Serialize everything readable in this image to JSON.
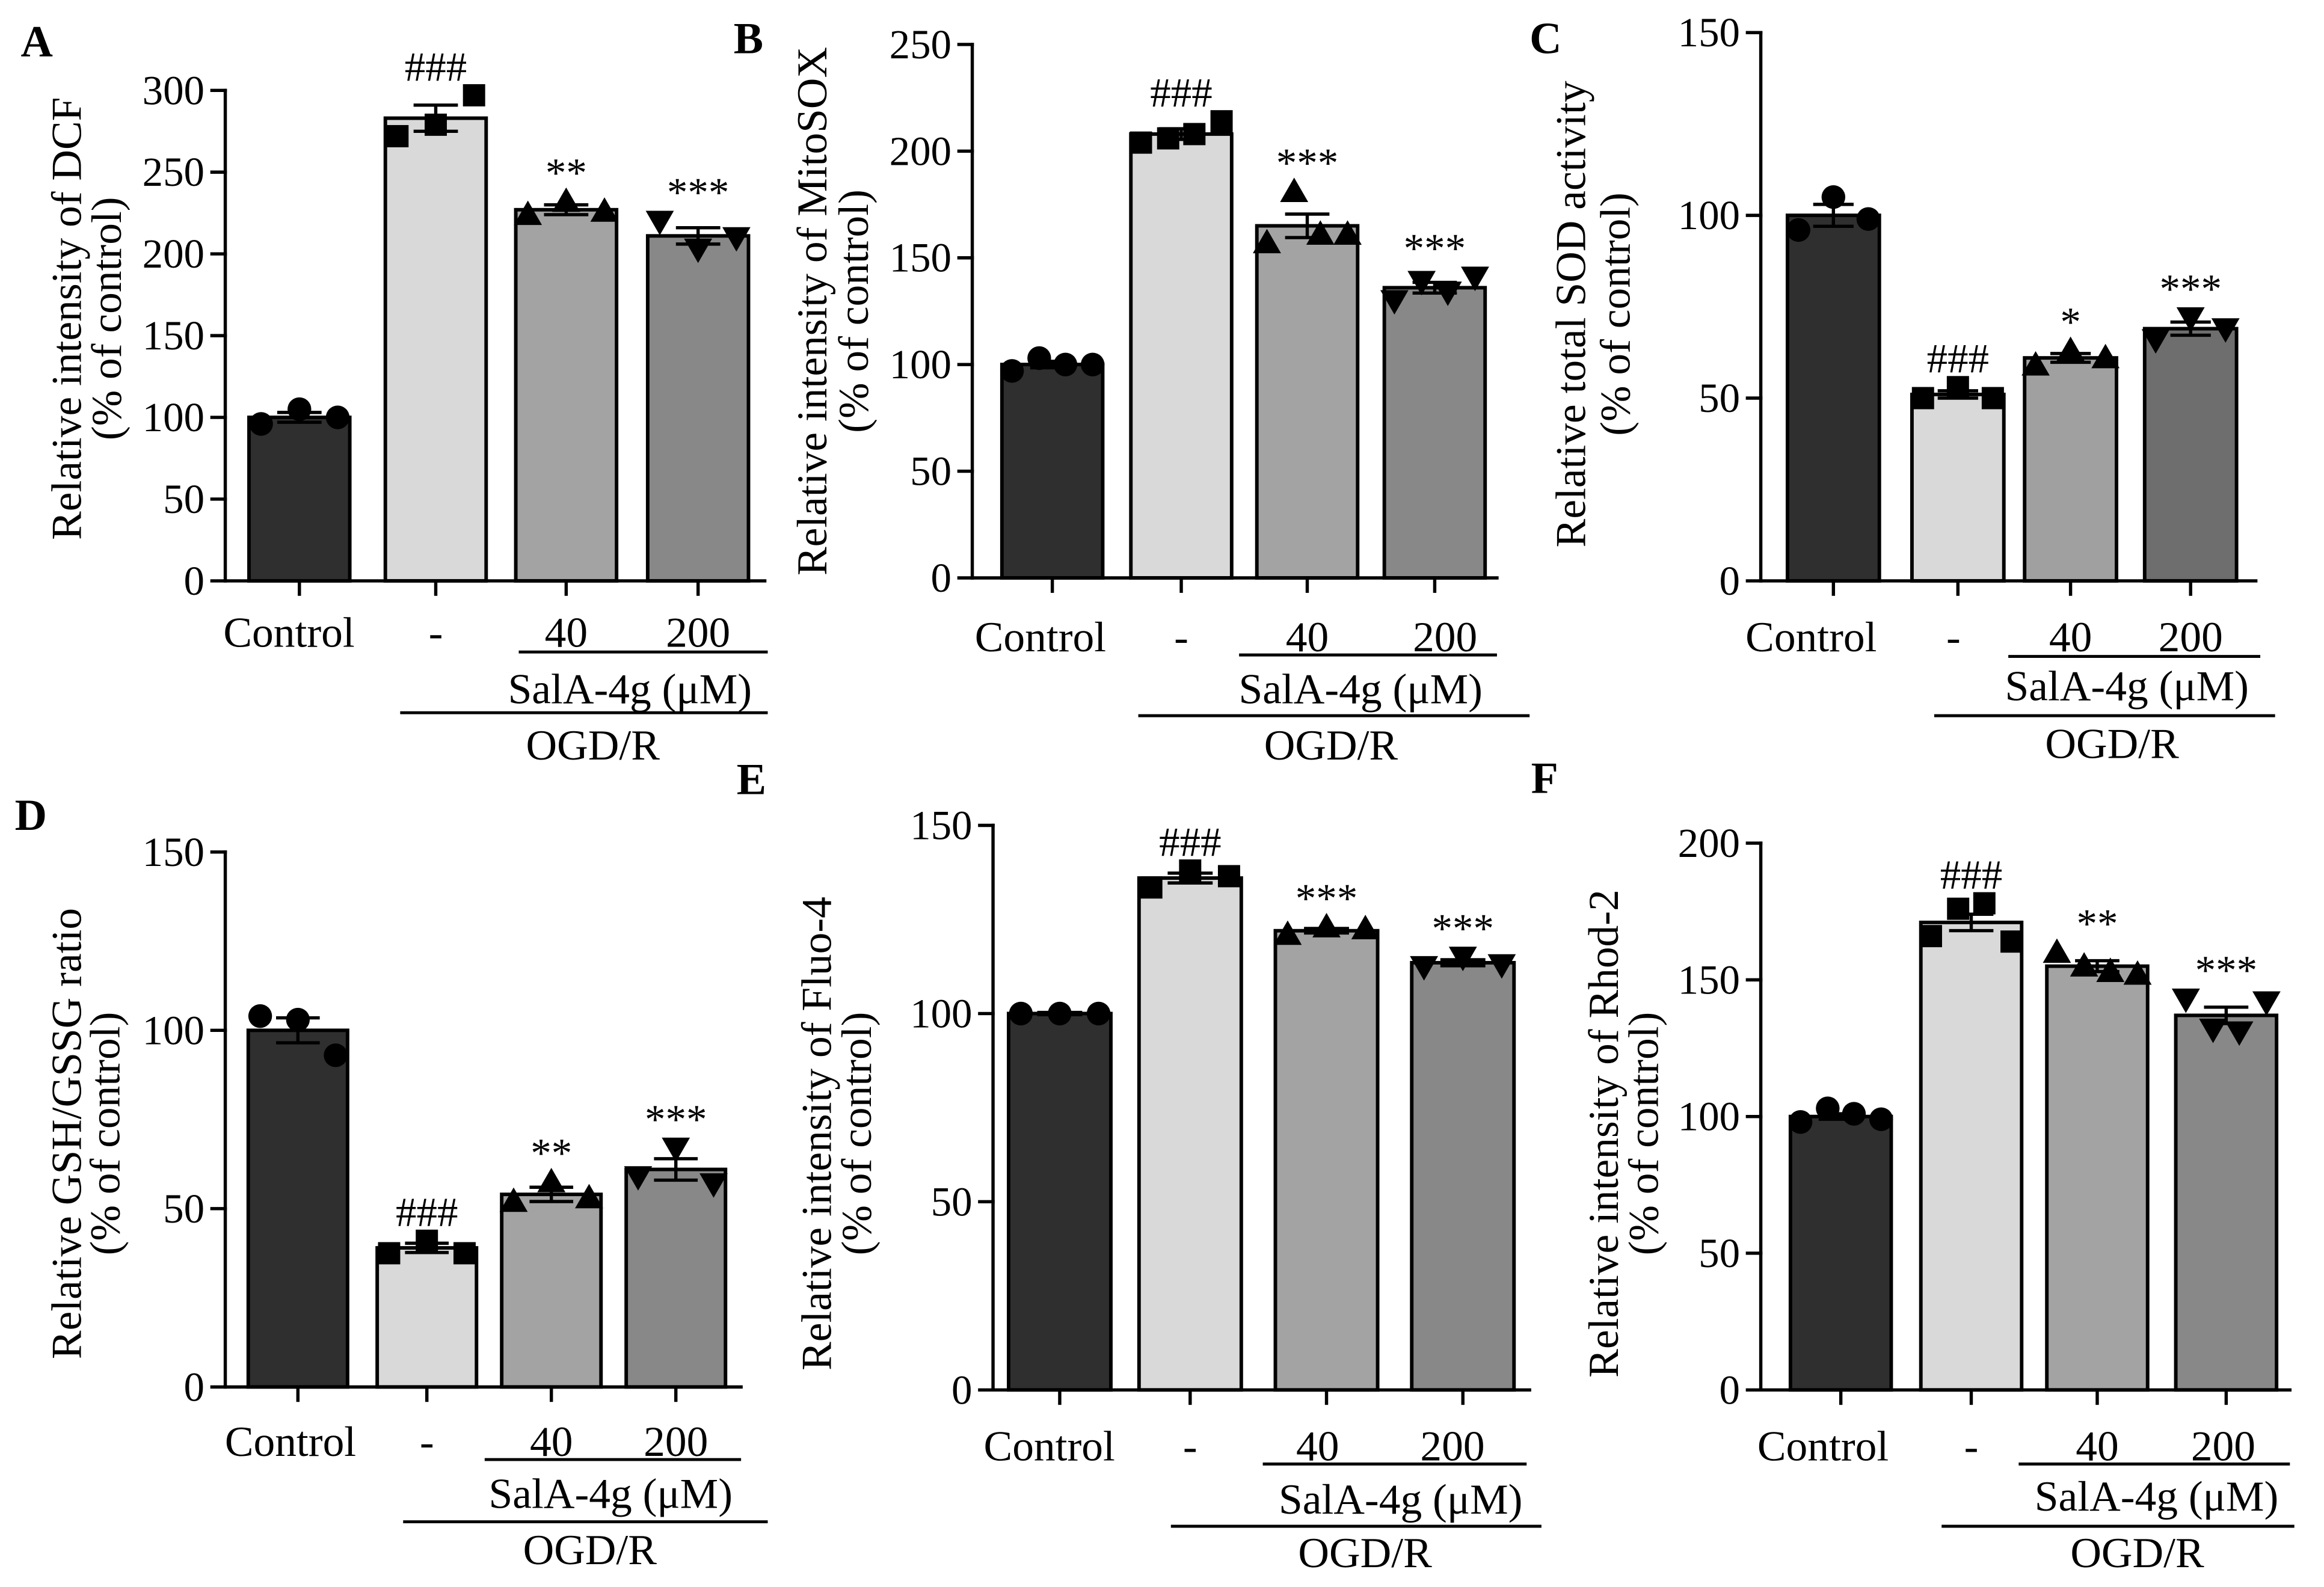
{
  "chart_data": [
    {
      "panel": "A",
      "type": "bar",
      "categories": [
        "Control",
        "-",
        "40",
        "200"
      ],
      "group_labels": [
        "SalA-4g (μM)",
        "OGD/R"
      ],
      "ylabel": [
        "Relative intensity of DCF",
        "(% of control)"
      ],
      "ylim": [
        0,
        300
      ],
      "yticks": [
        0,
        50,
        100,
        150,
        200,
        250,
        300
      ],
      "values": [
        100,
        283,
        227,
        211
      ],
      "errors": [
        3,
        8,
        3,
        5
      ],
      "points": [
        [
          96,
          105,
          100
        ],
        [
          272,
          279,
          297
        ],
        [
          224,
          232,
          226
        ],
        [
          220,
          203,
          210
        ]
      ],
      "markers": [
        "circle",
        "square",
        "triangle-up",
        "triangle-down"
      ],
      "significance": [
        null,
        "###",
        "**",
        "***"
      ],
      "bar_colors": [
        "#2f2f2f",
        "#d9d9d9",
        "#a3a3a3",
        "#888888"
      ]
    },
    {
      "panel": "B",
      "type": "bar",
      "categories": [
        "Control",
        "-",
        "40",
        "200"
      ],
      "group_labels": [
        "SalA-4g (μM)",
        "OGD/R"
      ],
      "ylabel": [
        "Relative intensity of MitoSOX",
        "(% of control)"
      ],
      "ylim": [
        0,
        250
      ],
      "yticks": [
        0,
        50,
        100,
        150,
        200,
        250
      ],
      "values": [
        100,
        208,
        165,
        136
      ],
      "errors": [
        1.5,
        2.5,
        5.5,
        2.5
      ],
      "points": [
        [
          97,
          103,
          100,
          100
        ],
        [
          204,
          206,
          208,
          214
        ],
        [
          157,
          181,
          161,
          161
        ],
        [
          130,
          139,
          134,
          141
        ]
      ],
      "markers": [
        "circle",
        "square",
        "triangle-up",
        "triangle-down"
      ],
      "significance": [
        null,
        "###",
        "***",
        "***"
      ],
      "bar_colors": [
        "#2f2f2f",
        "#d9d9d9",
        "#a3a3a3",
        "#888888"
      ]
    },
    {
      "panel": "C",
      "type": "bar",
      "categories": [
        "Control",
        "-",
        "40",
        "200"
      ],
      "group_labels": [
        "SalA-4g (μM)",
        "OGD/R"
      ],
      "ylabel": [
        "Relative total SOD activity",
        "(% of control)"
      ],
      "ylim": [
        0,
        150
      ],
      "yticks": [
        0,
        50,
        100,
        150
      ],
      "values": [
        100,
        51,
        61,
        69
      ],
      "errors": [
        3,
        1,
        1.2,
        1.8
      ],
      "points": [
        [
          96,
          105,
          99
        ],
        [
          50,
          53,
          50
        ],
        [
          59,
          63,
          61
        ],
        [
          66,
          72,
          69
        ]
      ],
      "markers": [
        "circle",
        "square",
        "triangle-up",
        "triangle-down"
      ],
      "significance": [
        null,
        "###",
        "*",
        "***"
      ],
      "bar_colors": [
        "#2f2f2f",
        "#d9d9d9",
        "#a0a0a0",
        "#6e6e6e"
      ]
    },
    {
      "panel": "D",
      "type": "bar",
      "categories": [
        "Control",
        "-",
        "40",
        "200"
      ],
      "group_labels": [
        "SalA-4g (μM)",
        "OGD/R"
      ],
      "ylabel": [
        "Relative GSH/GSSG ratio",
        "(% of control)"
      ],
      "ylim": [
        0,
        150
      ],
      "yticks": [
        0,
        50,
        100,
        150
      ],
      "values": [
        100,
        39,
        54,
        61
      ],
      "errors": [
        3.5,
        1.3,
        2,
        3
      ],
      "points": [
        [
          104,
          103,
          93
        ],
        [
          37.5,
          41,
          37.5
        ],
        [
          52,
          57.5,
          53
        ],
        [
          59,
          67,
          57
        ]
      ],
      "markers": [
        "circle",
        "square",
        "triangle-up",
        "triangle-down"
      ],
      "significance": [
        null,
        "###",
        "**",
        "***"
      ],
      "bar_colors": [
        "#2f2f2f",
        "#d9d9d9",
        "#a3a3a3",
        "#888888"
      ]
    },
    {
      "panel": "E",
      "type": "bar",
      "categories": [
        "Control",
        "-",
        "40",
        "200"
      ],
      "group_labels": [
        "SalA-4g (μM)",
        "OGD/R"
      ],
      "ylabel": [
        "Relative intensity of Fluo-4",
        "(% of control)"
      ],
      "ylim": [
        0,
        150
      ],
      "yticks": [
        0,
        50,
        100,
        150
      ],
      "values": [
        100,
        136,
        122,
        113.5
      ],
      "errors": [
        0.3,
        1.3,
        0.6,
        0.8
      ],
      "points": [
        [
          100,
          100,
          100
        ],
        [
          133.5,
          138,
          136.5
        ],
        [
          121,
          123,
          122.5
        ],
        [
          112.5,
          115,
          113
        ]
      ],
      "markers": [
        "circle",
        "square",
        "triangle-up",
        "triangle-down"
      ],
      "significance": [
        null,
        "###",
        "***",
        "***"
      ],
      "bar_colors": [
        "#2f2f2f",
        "#d9d9d9",
        "#a3a3a3",
        "#888888"
      ]
    },
    {
      "panel": "F",
      "type": "bar",
      "categories": [
        "Control",
        "-",
        "40",
        "200"
      ],
      "group_labels": [
        "SalA-4g (μM)",
        "OGD/R"
      ],
      "ylabel": [
        "Relative intensity of Rhod-2",
        "(% of control)"
      ],
      "ylim": [
        0,
        200
      ],
      "yticks": [
        0,
        50,
        100,
        150,
        200
      ],
      "values": [
        100,
        171,
        155,
        137
      ],
      "errors": [
        1,
        3,
        2,
        3
      ],
      "points": [
        [
          98,
          103,
          101,
          99
        ],
        [
          166,
          176,
          178,
          164
        ],
        [
          160,
          155,
          153,
          152
        ],
        [
          143,
          132,
          131,
          142
        ]
      ],
      "markers": [
        "circle",
        "square",
        "triangle-up",
        "triangle-down"
      ],
      "significance": [
        null,
        "###",
        "**",
        "***"
      ],
      "bar_colors": [
        "#2f2f2f",
        "#d9d9d9",
        "#a3a3a3",
        "#888888"
      ]
    }
  ]
}
